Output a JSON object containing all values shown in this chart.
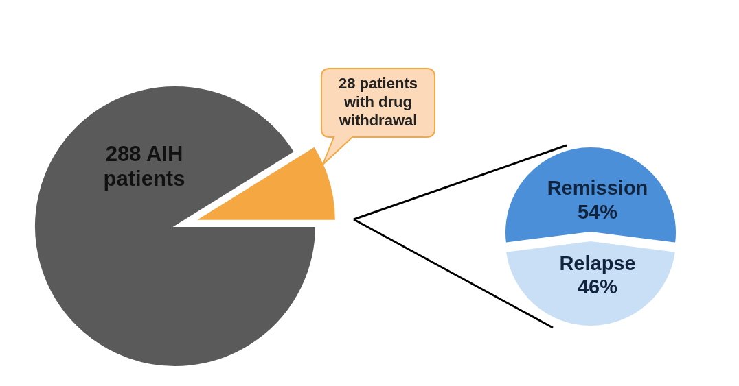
{
  "chart_data": [
    {
      "type": "pie",
      "categories": [
        "288 AIH patients",
        "28 patients with drug withdrawal"
      ],
      "values": [
        288,
        28
      ],
      "colors": [
        "#5a5a5a",
        "#f5a742"
      ]
    },
    {
      "type": "pie",
      "categories": [
        "Remission",
        "Relapse"
      ],
      "values": [
        54,
        46
      ],
      "value_labels": [
        "54%",
        "46%"
      ],
      "colors": [
        "#4a8fd8",
        "#c9dff5"
      ]
    }
  ]
}
